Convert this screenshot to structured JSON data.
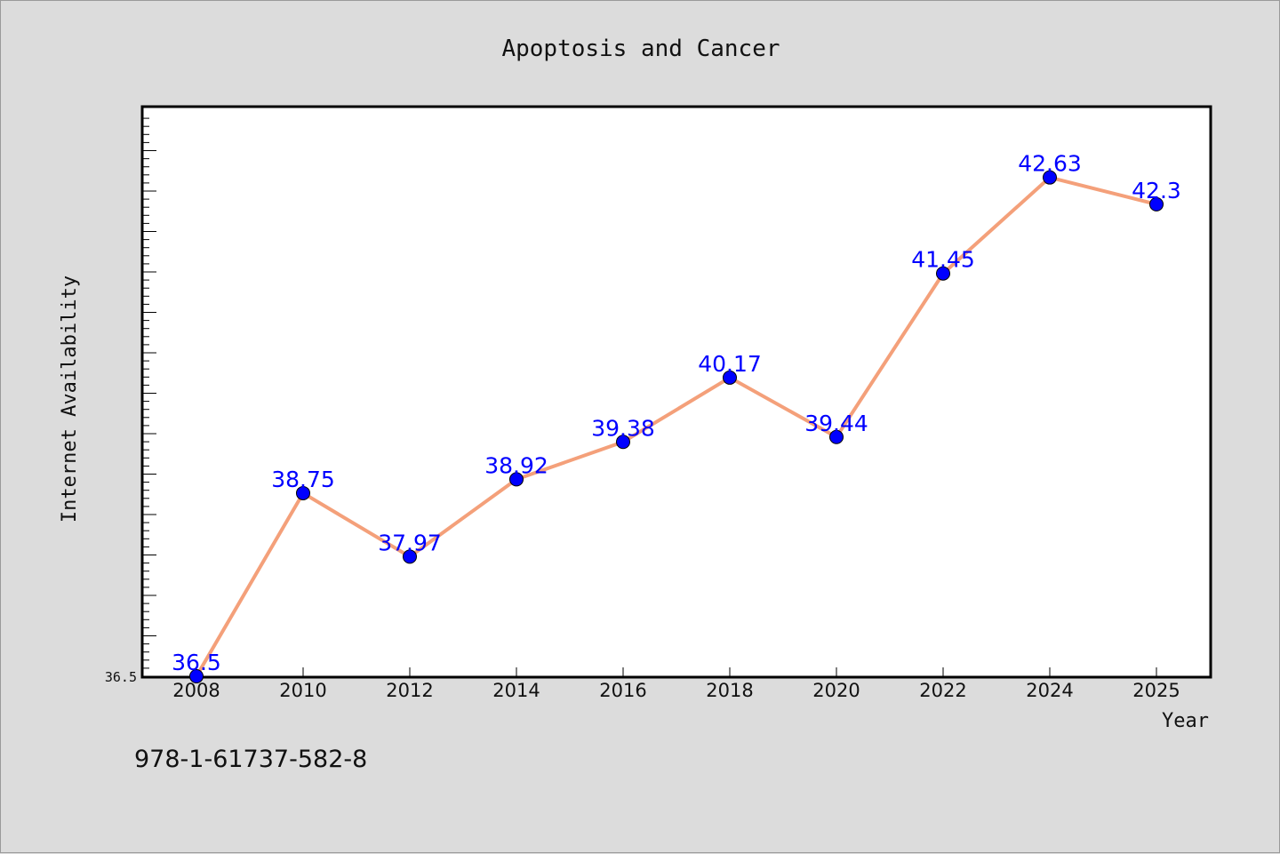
{
  "chart_data": {
    "type": "line",
    "title": "Apoptosis and Cancer",
    "xlabel": "Year",
    "ylabel": "Internet Availability",
    "categories": [
      "2008",
      "2010",
      "2012",
      "2014",
      "2016",
      "2018",
      "2020",
      "2022",
      "2024",
      "2025"
    ],
    "series": [
      {
        "values": [
          36.5,
          38.75,
          37.97,
          38.92,
          39.38,
          40.17,
          39.44,
          41.45,
          42.63,
          42.3
        ],
        "labels": [
          "36.5",
          "38.75",
          "37.97",
          "38.92",
          "39.38",
          "40.17",
          "39.44",
          "41.45",
          "42.63",
          "42.3"
        ],
        "line_color": "#f4a07a",
        "marker_color": "#0000ff"
      }
    ],
    "yticks": [
      "36.5"
    ],
    "ylim": [
      36.5,
      43.5
    ],
    "grid": false,
    "legend": "none"
  },
  "footer": {
    "code": "978-1-61737-582-8"
  },
  "colors": {
    "background": "#dcdcdc",
    "plot_background": "#ffffff",
    "label_color": "#0000ff"
  }
}
